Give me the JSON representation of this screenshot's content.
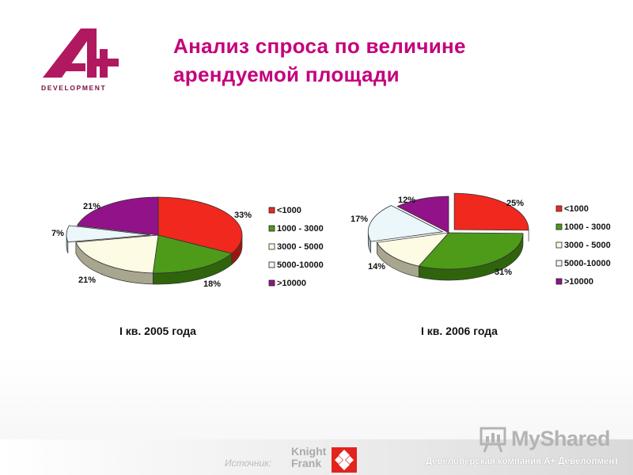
{
  "header": {
    "title_line1": "Анализ спроса по величине",
    "title_line2": "арендуемой площади",
    "logo_text": "DEVELOPMENT"
  },
  "colors": {
    "accent": "#c4007c",
    "logo": "#b0195f",
    "slices": [
      "#f0281e",
      "#4e9a19",
      "#fdfbe4",
      "#ebf7fb",
      "#92128a"
    ],
    "slices_side": [
      "#9c160f",
      "#2f640c",
      "#a8a68f",
      "#9bb0b7",
      "#5b0a56"
    ]
  },
  "chart_data": [
    {
      "type": "pie",
      "title": "I кв. 2005 года",
      "categories": [
        "<1000",
        "1000 - 3000",
        "3000 - 5000",
        "5000-10000",
        ">10000"
      ],
      "values": [
        33,
        18,
        21,
        7,
        21
      ],
      "labels": [
        "33%",
        "18%",
        "21%",
        "7%",
        "21%"
      ],
      "legend": "right"
    },
    {
      "type": "pie",
      "title": "I кв. 2006 года",
      "categories": [
        "<1000",
        "1000 - 3000",
        "3000 - 5000",
        "5000-10000",
        ">10000"
      ],
      "values": [
        25,
        31,
        14,
        17,
        12
      ],
      "labels": [
        "25%",
        "31%",
        "14%",
        "17%",
        "12%"
      ],
      "legend": "right"
    }
  ],
  "footer": {
    "source_label": "Источник:",
    "brand_line1": "Knight",
    "brand_line2": "Frank",
    "company": "Девелоперская компания А+ Девелопмент",
    "watermark": "MyShared"
  }
}
